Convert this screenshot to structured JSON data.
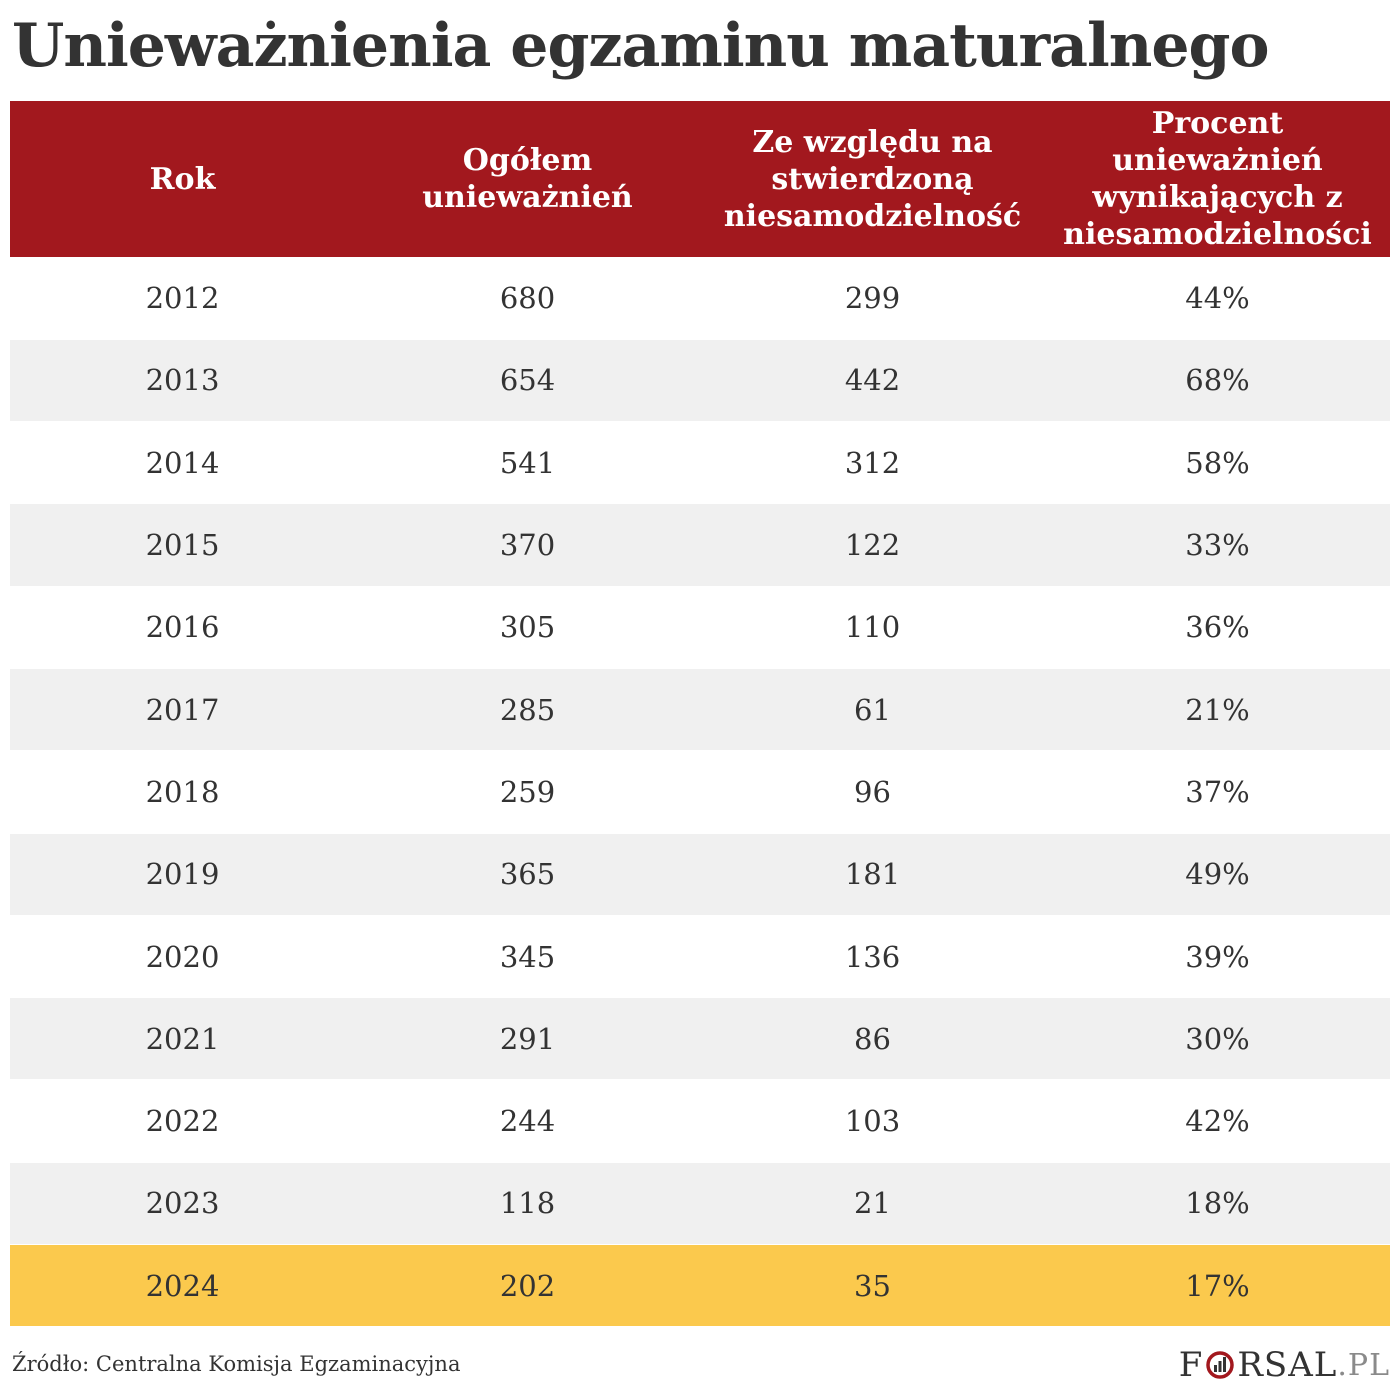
{
  "title": "Unieważnienia egzaminu maturalnego",
  "chart_data": {
    "type": "table",
    "title": "Unieważnienia egzaminu maturalnego",
    "columns": [
      "Rok",
      "Ogółem unieważnień",
      "Ze względu na stwierdzoną niesamodzielność",
      "Procent unieważnień wynikających z niesamodzielności"
    ],
    "rows": [
      [
        "2012",
        "680",
        "299",
        "44%"
      ],
      [
        "2013",
        "654",
        "442",
        "68%"
      ],
      [
        "2014",
        "541",
        "312",
        "58%"
      ],
      [
        "2015",
        "370",
        "122",
        "33%"
      ],
      [
        "2016",
        "305",
        "110",
        "36%"
      ],
      [
        "2017",
        "285",
        "61",
        "21%"
      ],
      [
        "2018",
        "259",
        "96",
        "37%"
      ],
      [
        "2019",
        "365",
        "181",
        "49%"
      ],
      [
        "2020",
        "345",
        "136",
        "39%"
      ],
      [
        "2021",
        "291",
        "86",
        "30%"
      ],
      [
        "2022",
        "244",
        "103",
        "42%"
      ],
      [
        "2023",
        "118",
        "21",
        "18%"
      ],
      [
        "2024",
        "202",
        "35",
        "17%"
      ]
    ],
    "highlighted_row": "2024"
  },
  "source": "Źródło: Centralna Komisja Egzaminacyjna",
  "logo": {
    "prefix": "F",
    "suffix_main": "RSAL",
    "suffix_domain": ".PL"
  },
  "colors": {
    "header_background": "#a2181e",
    "header_text": "#ffffff",
    "row_alt_background": "#f0f0f0",
    "highlight_background": "#fbc94d",
    "text": "#333333"
  }
}
